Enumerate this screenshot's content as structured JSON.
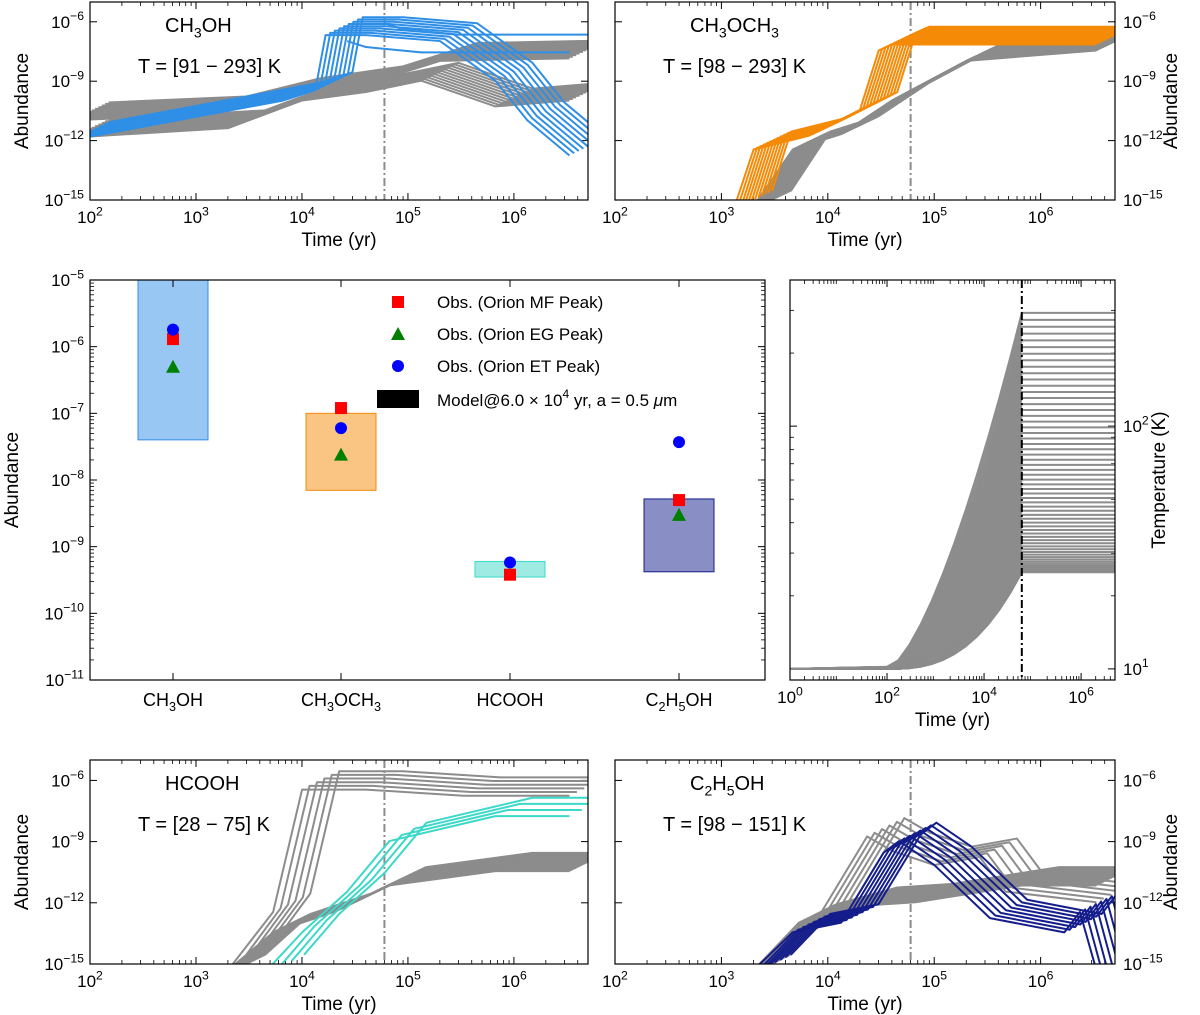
{
  "figure": {
    "background": "#ffffff"
  },
  "colors": {
    "grey": "#8c8c8c",
    "ch3oh": "#2f8fe6",
    "ch3och3": "#f58a07",
    "hcooh": "#3cd8c8",
    "c2h5oh": "#141d8c",
    "obs_mf": "#ff0000",
    "obs_eg": "#008000",
    "obs_et": "#0000ff",
    "vline": "#8c8c8c"
  },
  "chart_data": [
    {
      "id": "ch3oh_panel",
      "type": "line",
      "title_sub": [
        "CH",
        "3",
        "OH"
      ],
      "temperature_label": "T = [91 − 293] K",
      "xlabel": "Time (yr)",
      "ylabel": "Abundance",
      "ylabel_side": "left",
      "x_scale": "log",
      "y_scale": "log",
      "xlim": [
        100,
        5000000
      ],
      "ylim": [
        1e-15,
        1e-05
      ],
      "x_ticks": [
        {
          "v": 100,
          "label": "10",
          "exp": "2"
        },
        {
          "v": 1000,
          "label": "10",
          "exp": "3"
        },
        {
          "v": 10000,
          "label": "10",
          "exp": "4"
        },
        {
          "v": 100000,
          "label": "10",
          "exp": "5"
        },
        {
          "v": 1000000,
          "label": "10",
          "exp": "6"
        }
      ],
      "y_ticks": [
        {
          "v": 1e-06,
          "label": "10",
          "exp": "−6"
        },
        {
          "v": 1e-09,
          "label": "10",
          "exp": "−9"
        },
        {
          "v": 1e-12,
          "label": "10",
          "exp": "−12"
        },
        {
          "v": 1e-15,
          "label": "10",
          "exp": "−15"
        }
      ],
      "vline_x": 60000,
      "series": [
        {
          "color": "grey",
          "count": 12,
          "points": [
            [
              100,
              4e-12
            ],
            [
              3000,
              1.2e-11
            ],
            [
              15000,
              3e-10
            ],
            [
              60000,
              8e-10
            ],
            [
              200000,
              3e-09
            ],
            [
              1000000,
              1.5e-10
            ],
            [
              5000000,
              3e-10
            ]
          ]
        },
        {
          "color": "grey",
          "count": 12,
          "points": [
            [
              100,
              3e-11
            ],
            [
              2000,
              6e-11
            ],
            [
              10000,
              5e-10
            ],
            [
              60000,
              2e-09
            ],
            [
              300000,
              3e-08
            ],
            [
              5000000,
              4e-08
            ]
          ]
        },
        {
          "color": "ch3oh",
          "count": 9,
          "points": [
            [
              100,
              3e-12
            ],
            [
              10000,
              3e-10
            ],
            [
              20000,
              1e-09
            ],
            [
              25000,
              6e-07
            ],
            [
              60000,
              6e-07
            ],
            [
              300000,
              3e-07
            ],
            [
              1000000,
              3e-09
            ],
            [
              2000000,
              3e-11
            ],
            [
              5000000,
              5e-13
            ]
          ]
        },
        {
          "color": "ch3oh",
          "count": 2,
          "points": [
            [
              40000,
              3e-07
            ],
            [
              60000,
              1.5e-07
            ],
            [
              200000,
              8e-08
            ],
            [
              5000000,
              8e-08
            ]
          ]
        }
      ]
    },
    {
      "id": "ch3och3_panel",
      "type": "line",
      "title_sub": [
        "CH",
        "3",
        "OCH",
        "3",
        ""
      ],
      "temperature_label": "T = [98 − 293] K",
      "xlabel": "Time (yr)",
      "ylabel": "Abundance",
      "ylabel_side": "right",
      "x_scale": "log",
      "y_scale": "log",
      "xlim": [
        100,
        5000000
      ],
      "ylim": [
        1e-15,
        1e-05
      ],
      "x_ticks": [
        {
          "v": 100,
          "label": "10",
          "exp": "2"
        },
        {
          "v": 1000,
          "label": "10",
          "exp": "3"
        },
        {
          "v": 10000,
          "label": "10",
          "exp": "4"
        },
        {
          "v": 100000,
          "label": "10",
          "exp": "5"
        },
        {
          "v": 1000000,
          "label": "10",
          "exp": "6"
        }
      ],
      "y_ticks": [
        {
          "v": 1e-06,
          "label": "10",
          "exp": "−6"
        },
        {
          "v": 1e-09,
          "label": "10",
          "exp": "−9"
        },
        {
          "v": 1e-12,
          "label": "10",
          "exp": "−12"
        },
        {
          "v": 1e-15,
          "label": "10",
          "exp": "−15"
        }
      ],
      "vline_x": 60000,
      "series": [
        {
          "color": "grey",
          "count": 30,
          "points": [
            [
              3000,
              1e-15
            ],
            [
              7000,
              1e-12
            ],
            [
              20000,
              6e-12
            ],
            [
              60000,
              3e-10
            ],
            [
              300000,
              3e-08
            ],
            [
              5000000,
              1e-07
            ]
          ]
        },
        {
          "color": "ch3och3",
          "count": 12,
          "points": [
            [
              2000,
              1e-15
            ],
            [
              3000,
              1e-12
            ],
            [
              10000,
              5e-12
            ],
            [
              30000,
              1e-10
            ],
            [
              45000,
              1e-07
            ],
            [
              60000,
              2e-07
            ],
            [
              5000000,
              2e-07
            ]
          ]
        }
      ]
    },
    {
      "id": "summary_panel",
      "type": "scatter",
      "xlabel": "",
      "ylabel": "Abundance",
      "y_scale": "log",
      "ylim": [
        1e-11,
        1e-05
      ],
      "categories": [
        [
          "CH",
          "3",
          "OH"
        ],
        [
          "CH",
          "3",
          "OCH",
          "3",
          ""
        ],
        [
          "HCOOH"
        ],
        [
          "C",
          "2",
          "H",
          "5",
          "OH"
        ]
      ],
      "y_ticks": [
        {
          "v": 1e-05,
          "label": "10",
          "exp": "−5"
        },
        {
          "v": 1e-06,
          "label": "10",
          "exp": "−6"
        },
        {
          "v": 1e-07,
          "label": "10",
          "exp": "−7"
        },
        {
          "v": 1e-08,
          "label": "10",
          "exp": "−8"
        },
        {
          "v": 1e-09,
          "label": "10",
          "exp": "−9"
        },
        {
          "v": 1e-10,
          "label": "10",
          "exp": "−10"
        },
        {
          "v": 1e-11,
          "label": "10",
          "exp": "−11"
        }
      ],
      "model_ranges": [
        {
          "color": "ch3oh",
          "low": 4e-08,
          "high": 1e-05
        },
        {
          "color": "ch3och3",
          "low": 7e-09,
          "high": 1e-07
        },
        {
          "color": "hcooh",
          "low": 3.5e-10,
          "high": 6e-10
        },
        {
          "color": "c2h5oh",
          "low": 4.2e-10,
          "high": 5.2e-09
        }
      ],
      "observations": [
        {
          "name": "Obs. (Orion MF Peak)",
          "marker": "square",
          "color": "obs_mf",
          "values": [
            1.3e-06,
            1.2e-07,
            3.8e-10,
            5e-09
          ]
        },
        {
          "name": "Obs. (Orion EG Peak)",
          "marker": "triangle",
          "color": "obs_eg",
          "values": [
            5e-07,
            2.4e-08,
            null,
            3e-09
          ]
        },
        {
          "name": "Obs. (Orion ET Peak)",
          "marker": "circle",
          "color": "obs_et",
          "values": [
            1.8e-06,
            6e-08,
            5.8e-10,
            3.7e-08
          ]
        }
      ],
      "legend": {
        "placement": "upper-right",
        "model_label_prefix": "Model@6.0 × 10",
        "model_label_exp": "4",
        "model_label_suffix": " yr, a = 0.5 ",
        "model_label_unit_mu": "μ",
        "model_label_unit_m": "m"
      }
    },
    {
      "id": "temperature_panel",
      "type": "line",
      "xlabel": "Time (yr)",
      "ylabel": "Temperature (K)",
      "ylabel_side": "right",
      "x_scale": "log",
      "y_scale": "log",
      "xlim": [
        1,
        5000000
      ],
      "ylim": [
        9,
        400
      ],
      "x_ticks": [
        {
          "v": 1,
          "label": "10",
          "exp": "0"
        },
        {
          "v": 100,
          "label": "10",
          "exp": "2"
        },
        {
          "v": 10000,
          "label": "10",
          "exp": "4"
        },
        {
          "v": 1000000,
          "label": "10",
          "exp": "6"
        }
      ],
      "y_ticks": [
        {
          "v": 10,
          "label": "10",
          "exp": "1"
        },
        {
          "v": 100,
          "label": "10",
          "exp": "2"
        }
      ],
      "vline_x": 60000,
      "vline_color": "#000000",
      "t_start": 10,
      "t_final_min": 25,
      "t_final_max": 293,
      "n_lines": 60
    },
    {
      "id": "hcooh_panel",
      "type": "line",
      "title_sub": [
        "HCOOH"
      ],
      "temperature_label": "T = [28 − 75] K",
      "xlabel": "Time (yr)",
      "ylabel": "Abundance",
      "ylabel_side": "left",
      "x_scale": "log",
      "y_scale": "log",
      "xlim": [
        100,
        5000000
      ],
      "ylim": [
        1e-15,
        1e-05
      ],
      "x_ticks": [
        {
          "v": 100,
          "label": "10",
          "exp": "2"
        },
        {
          "v": 1000,
          "label": "10",
          "exp": "3"
        },
        {
          "v": 10000,
          "label": "10",
          "exp": "4"
        },
        {
          "v": 100000,
          "label": "10",
          "exp": "5"
        },
        {
          "v": 1000000,
          "label": "10",
          "exp": "6"
        }
      ],
      "y_ticks": [
        {
          "v": 1e-06,
          "label": "10",
          "exp": "−6"
        },
        {
          "v": 1e-09,
          "label": "10",
          "exp": "−9"
        },
        {
          "v": 1e-12,
          "label": "10",
          "exp": "−12"
        },
        {
          "v": 1e-15,
          "label": "10",
          "exp": "−15"
        }
      ],
      "vline_x": 60000,
      "series": [
        {
          "color": "grey",
          "count": 30,
          "points": [
            [
              3000,
              1e-15
            ],
            [
              8000,
              1e-13
            ],
            [
              30000,
              1e-12
            ],
            [
              100000,
              2e-11
            ],
            [
              1000000,
              1e-10
            ],
            [
              5000000,
              1e-10
            ]
          ]
        },
        {
          "color": "grey",
          "count": 6,
          "points": [
            [
              3000,
              1e-15
            ],
            [
              8000,
              1e-12
            ],
            [
              15000,
              1e-06
            ],
            [
              60000,
              1e-06
            ],
            [
              500000,
              5e-07
            ],
            [
              5000000,
              5e-07
            ]
          ]
        },
        {
          "color": "hcooh",
          "count": 4,
          "points": [
            [
              7000,
              1e-15
            ],
            [
              15000,
              1e-13
            ],
            [
              40000,
              1e-11
            ],
            [
              100000,
              3e-09
            ],
            [
              1000000,
              5e-08
            ],
            [
              5000000,
              5e-08
            ]
          ]
        }
      ]
    },
    {
      "id": "c2h5oh_panel",
      "type": "line",
      "title_sub": [
        "C",
        "2",
        "H",
        "5",
        "OH"
      ],
      "temperature_label": "T = [98 − 151] K",
      "xlabel": "Time (yr)",
      "ylabel": "Abundance",
      "ylabel_side": "right",
      "x_scale": "log",
      "y_scale": "log",
      "xlim": [
        100,
        5000000
      ],
      "ylim": [
        1e-15,
        1e-05
      ],
      "x_ticks": [
        {
          "v": 100,
          "label": "10",
          "exp": "2"
        },
        {
          "v": 1000,
          "label": "10",
          "exp": "3"
        },
        {
          "v": 10000,
          "label": "10",
          "exp": "4"
        },
        {
          "v": 100000,
          "label": "10",
          "exp": "5"
        },
        {
          "v": 1000000,
          "label": "10",
          "exp": "6"
        }
      ],
      "y_ticks": [
        {
          "v": 1e-06,
          "label": "10",
          "exp": "−6"
        },
        {
          "v": 1e-09,
          "label": "10",
          "exp": "−9"
        },
        {
          "v": 1e-12,
          "label": "10",
          "exp": "−12"
        },
        {
          "v": 1e-15,
          "label": "10",
          "exp": "−15"
        }
      ],
      "vline_x": 60000,
      "series": [
        {
          "color": "grey",
          "count": 25,
          "points": [
            [
              3000,
              1e-15
            ],
            [
              8000,
              3e-13
            ],
            [
              30000,
              2e-12
            ],
            [
              100000,
              3e-12
            ],
            [
              1000000,
              2e-11
            ],
            [
              5000000,
              2e-11
            ]
          ]
        },
        {
          "color": "grey",
          "count": 6,
          "points": [
            [
              10000,
              1e-13
            ],
            [
              35000,
              5e-09
            ],
            [
              60000,
              1e-09
            ],
            [
              150000,
              2e-10
            ],
            [
              400000,
              5e-10
            ],
            [
              700000,
              1e-11
            ],
            [
              5000000,
              3e-12
            ]
          ]
        },
        {
          "color": "c2h5oh",
          "count": 8,
          "points": [
            [
              3000,
              1e-15
            ],
            [
              7000,
              1e-13
            ],
            [
              20000,
              3e-13
            ],
            [
              50000,
              8e-10
            ],
            [
              70000,
              3e-09
            ],
            [
              150000,
              2e-10
            ],
            [
              500000,
              5e-13
            ],
            [
              2500000,
              1e-13
            ],
            [
              3500000,
              1e-12
            ],
            [
              5000000,
              1e-15
            ]
          ]
        }
      ]
    }
  ]
}
